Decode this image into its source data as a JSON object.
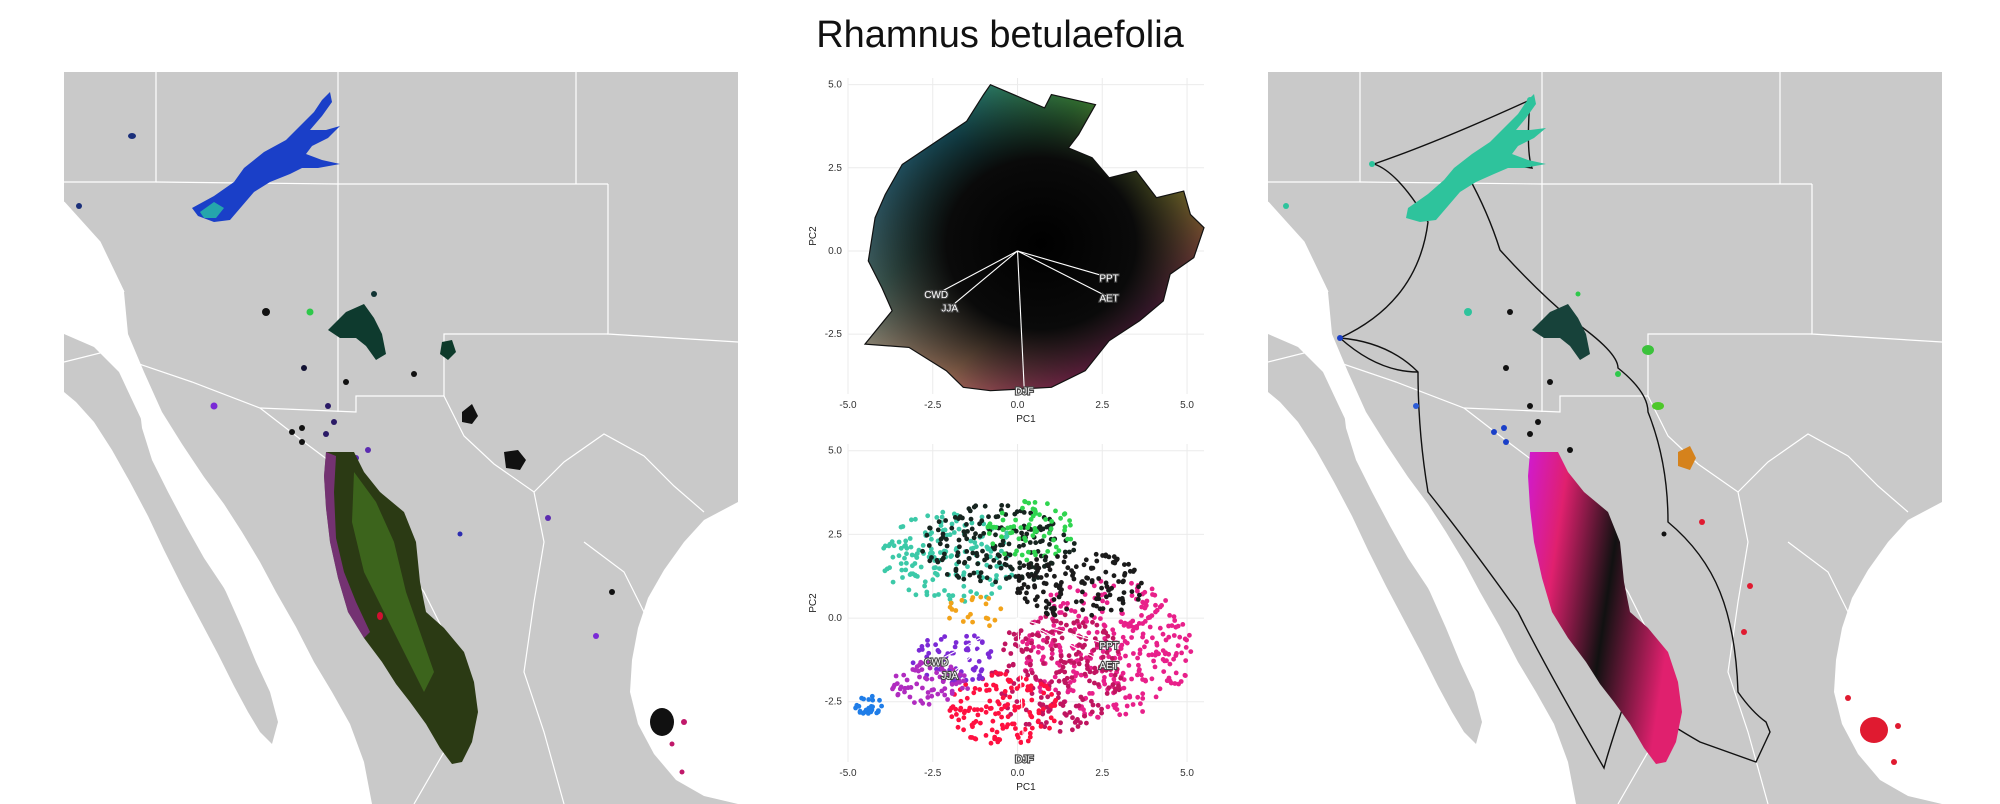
{
  "figure": {
    "title": "Rhamnus betulaefolia"
  },
  "colors": {
    "land": "#c9c9c9",
    "water": "#ffffff",
    "border": "#ffffff",
    "hull": "#111111",
    "biplot_axis": "#ffffff"
  },
  "chart_data": [
    {
      "type": "map",
      "panel": "left",
      "description_shown": "species range colored by climate PCA",
      "patches": [
        {
          "name": "northern-range",
          "color": "#1a3fc8"
        },
        {
          "name": "sierra-madre-range",
          "color": "#2b3a14"
        },
        {
          "name": "central-arizona",
          "color": "#0e3a2e"
        },
        {
          "name": "eastern-nm",
          "color": "#111111"
        },
        {
          "name": "veracruz",
          "color": "#111111"
        }
      ]
    },
    {
      "type": "scatter",
      "panel": "top-middle",
      "xlabel": "PC1",
      "ylabel": "PC2",
      "xlim": [
        -5.0,
        5.5
      ],
      "ylim": [
        -4.3,
        5.2
      ],
      "xticks": [
        "-5.0",
        "-2.5",
        "0.0",
        "2.5",
        "5.0"
      ],
      "yticks": [
        "5.0",
        "2.5",
        "0.0",
        "-2.5"
      ],
      "xtick_values": [
        -5.0,
        -2.5,
        0.0,
        2.5,
        5.0
      ],
      "ytick_values": [
        5.0,
        2.5,
        0.0,
        -2.5
      ],
      "grid": true,
      "hull": [
        [
          -3.4,
          2.6
        ],
        [
          -1.5,
          3.9
        ],
        [
          -1.0,
          4.7
        ],
        [
          -0.8,
          5.0
        ],
        [
          0.8,
          4.3
        ],
        [
          1.0,
          4.7
        ],
        [
          2.3,
          4.4
        ],
        [
          1.8,
          3.5
        ],
        [
          1.5,
          3.1
        ],
        [
          2.2,
          2.8
        ],
        [
          2.7,
          2.2
        ],
        [
          3.5,
          2.4
        ],
        [
          4.1,
          1.6
        ],
        [
          4.9,
          1.8
        ],
        [
          5.1,
          1.1
        ],
        [
          5.5,
          0.7
        ],
        [
          5.2,
          -0.2
        ],
        [
          4.5,
          -0.7
        ],
        [
          4.3,
          -1.5
        ],
        [
          3.6,
          -2.1
        ],
        [
          2.7,
          -2.7
        ],
        [
          2.0,
          -3.6
        ],
        [
          1.0,
          -4.1
        ],
        [
          -0.8,
          -4.2
        ],
        [
          -1.6,
          -4.1
        ],
        [
          -2.1,
          -3.6
        ],
        [
          -3.2,
          -2.9
        ],
        [
          -4.5,
          -2.8
        ],
        [
          -3.7,
          -1.8
        ],
        [
          -4.0,
          -1.1
        ],
        [
          -4.4,
          -0.3
        ],
        [
          -4.2,
          1.0
        ],
        [
          -3.9,
          1.7
        ]
      ],
      "biplot": [
        {
          "label": "PPT",
          "x": 2.7,
          "y": -0.8
        },
        {
          "label": "AET",
          "x": 2.7,
          "y": -1.4
        },
        {
          "label": "CWD",
          "x": -2.4,
          "y": -1.3
        },
        {
          "label": "JJA",
          "x": -2.0,
          "y": -1.7
        },
        {
          "label": "DJF",
          "x": 0.2,
          "y": -4.2
        }
      ]
    },
    {
      "type": "scatter",
      "panel": "bottom-middle",
      "xlabel": "PC1",
      "ylabel": "PC2",
      "xlim": [
        -5.0,
        5.5
      ],
      "ylim": [
        -4.3,
        5.2
      ],
      "xticks": [
        "-5.0",
        "-2.5",
        "0.0",
        "2.5",
        "5.0"
      ],
      "yticks": [
        "5.0",
        "2.5",
        "0.0",
        "-2.5"
      ],
      "xtick_values": [
        -5.0,
        -2.5,
        0.0,
        2.5,
        5.0
      ],
      "ytick_values": [
        5.0,
        2.5,
        0.0,
        -2.5
      ],
      "grid": true,
      "clusters": [
        {
          "color": "#3cc9a8",
          "cx": -2.0,
          "cy": 1.8,
          "rx": 2.0,
          "ry": 1.4,
          "n": 170
        },
        {
          "color": "#16241f",
          "cx": -0.6,
          "cy": 2.2,
          "rx": 2.3,
          "ry": 1.2,
          "n": 180
        },
        {
          "color": "#2fd54f",
          "cx": 0.4,
          "cy": 2.6,
          "rx": 1.3,
          "ry": 0.9,
          "n": 70
        },
        {
          "color": "#e8208a",
          "cx": 2.6,
          "cy": -0.9,
          "rx": 2.6,
          "ry": 2.1,
          "n": 320
        },
        {
          "color": "#c01560",
          "cx": 1.2,
          "cy": -1.6,
          "rx": 2.0,
          "ry": 1.8,
          "n": 200
        },
        {
          "color": "#ff1040",
          "cx": -0.4,
          "cy": -2.7,
          "rx": 1.6,
          "ry": 1.1,
          "n": 140
        },
        {
          "color": "#1b1b1b",
          "cx": 1.8,
          "cy": 1.0,
          "rx": 2.0,
          "ry": 1.0,
          "n": 140
        },
        {
          "color": "#7b2ad6",
          "cx": -1.8,
          "cy": -1.2,
          "rx": 1.3,
          "ry": 0.8,
          "n": 60
        },
        {
          "color": "#f2a31a",
          "cx": -1.2,
          "cy": 0.2,
          "rx": 0.9,
          "ry": 0.5,
          "n": 20
        },
        {
          "color": "#1f7de8",
          "cx": -4.4,
          "cy": -2.6,
          "rx": 0.4,
          "ry": 0.3,
          "n": 25
        },
        {
          "color": "#b02cc0",
          "cx": -2.6,
          "cy": -2.0,
          "rx": 1.2,
          "ry": 0.7,
          "n": 70
        }
      ],
      "biplot": [
        {
          "label": "PPT",
          "x": 2.7,
          "y": -0.8
        },
        {
          "label": "AET",
          "x": 2.7,
          "y": -1.4
        },
        {
          "label": "CWD",
          "x": -2.4,
          "y": -1.3
        },
        {
          "label": "JJA",
          "x": -2.0,
          "y": -1.7
        },
        {
          "label": "DJF",
          "x": 0.2,
          "y": -4.2
        }
      ]
    },
    {
      "type": "map",
      "panel": "right",
      "description_shown": "range with hull outline",
      "patches": [
        {
          "name": "northern-range",
          "color": "#2ec39c"
        },
        {
          "name": "sierra-madre-range",
          "color": "#e0206e"
        },
        {
          "name": "central-arizona",
          "color": "#17423a"
        },
        {
          "name": "texas-orange",
          "color": "#d5821c"
        },
        {
          "name": "veracruz",
          "color": "#e01a30"
        }
      ]
    }
  ]
}
